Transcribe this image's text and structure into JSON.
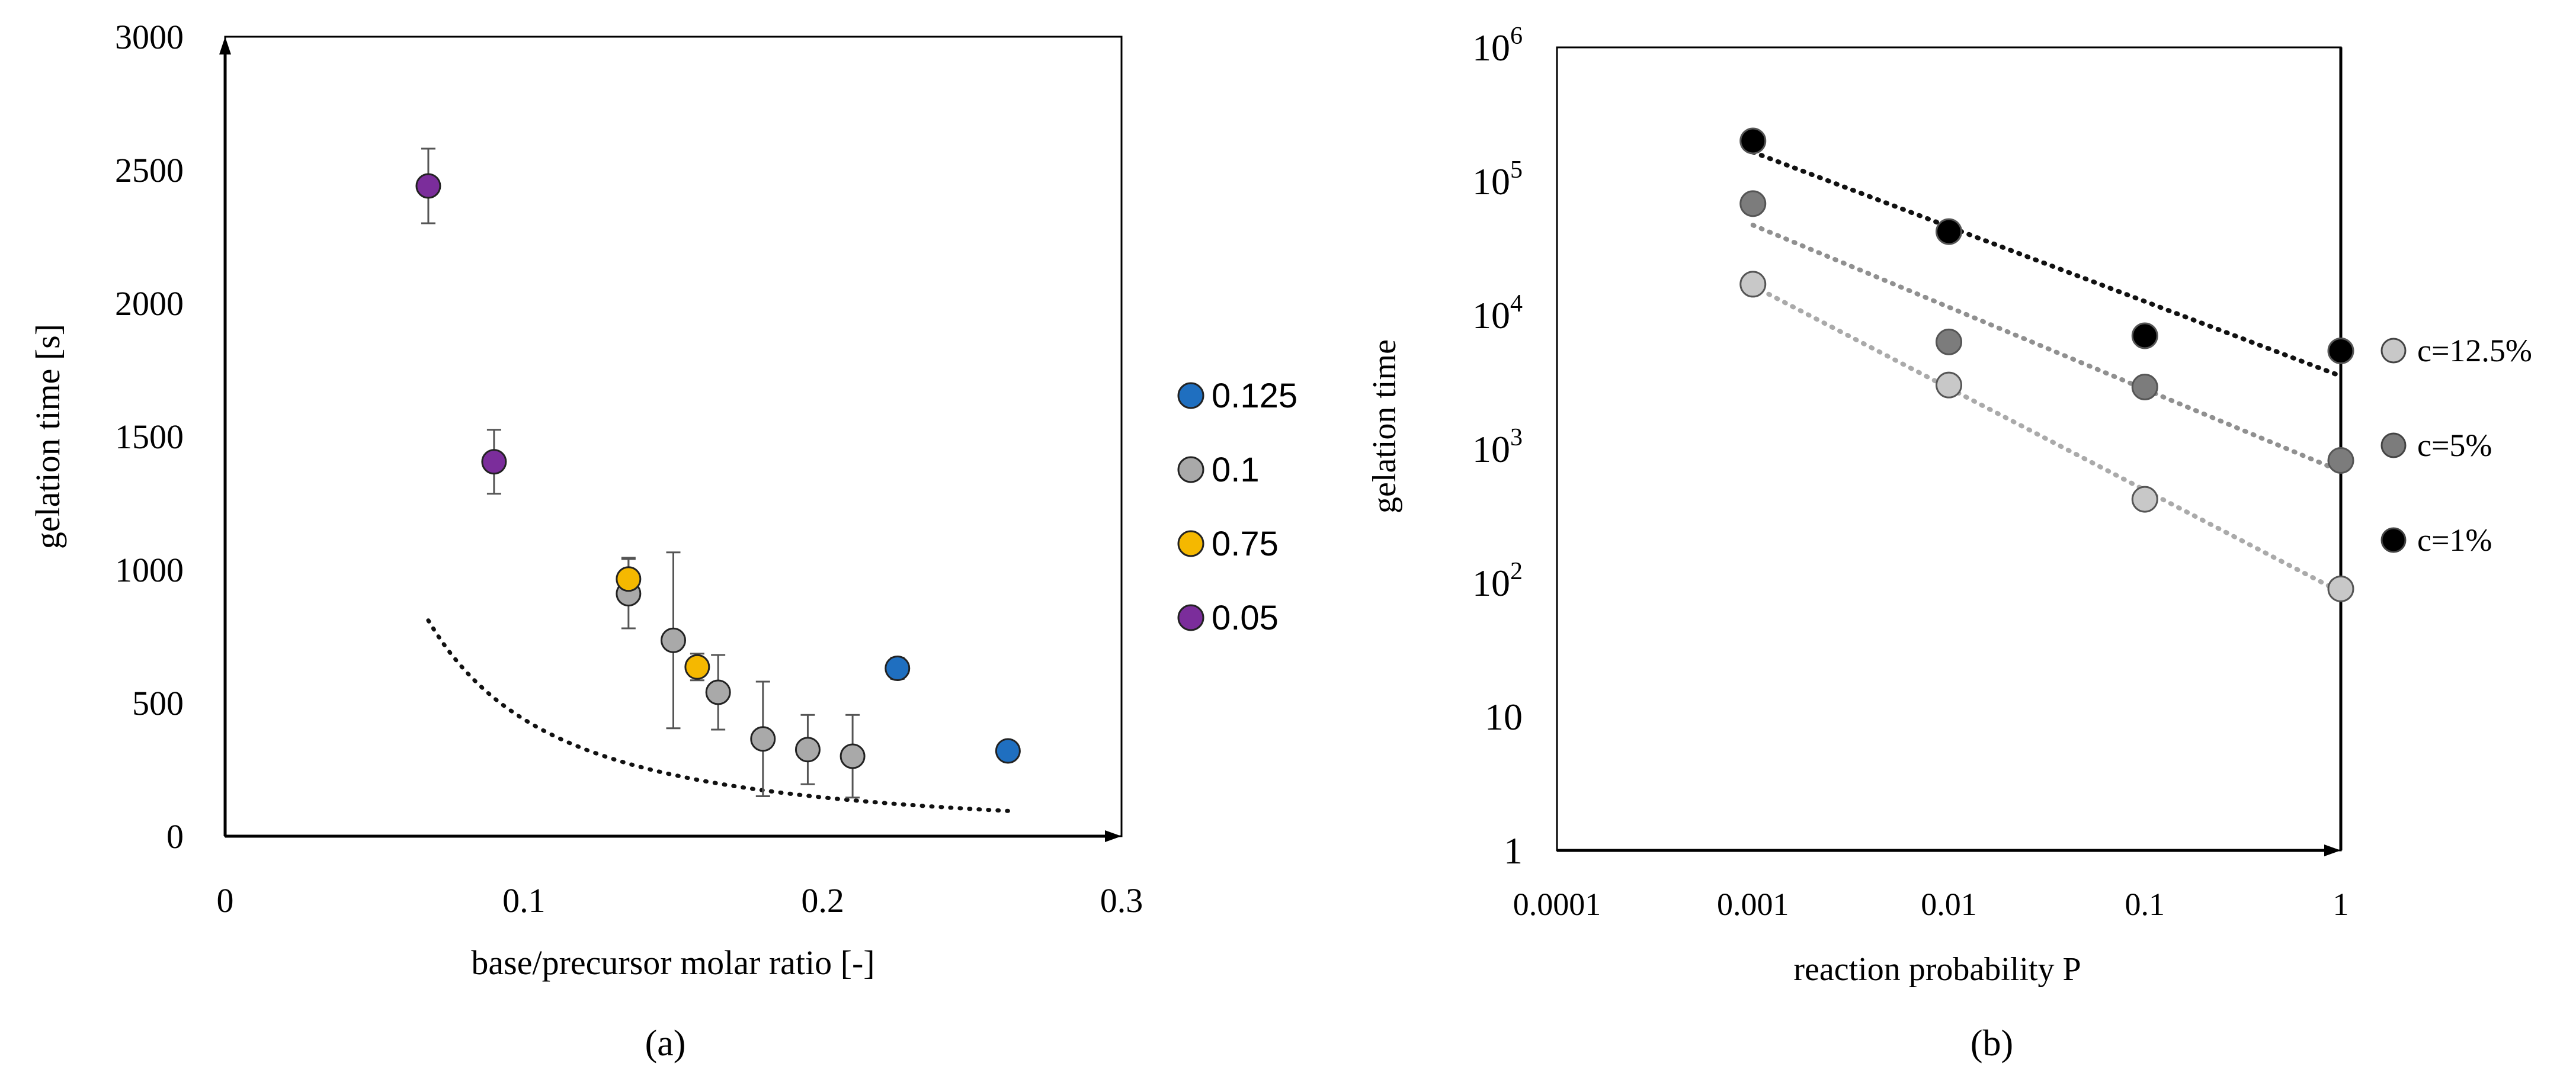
{
  "chart_data": [
    {
      "type": "scatter",
      "panel_label": "(a)",
      "xlabel": "base/precursor molar ratio [-]",
      "ylabel": "gelation time [s]",
      "xlim": [
        0,
        0.3
      ],
      "ylim": [
        0,
        3000
      ],
      "x_ticks": [
        "0",
        "0.1",
        "0.2",
        "0.3"
      ],
      "y_ticks": [
        "0",
        "500",
        "1000",
        "1500",
        "2000",
        "2500",
        "3000"
      ],
      "legend_position": "right",
      "series": [
        {
          "name": "0.125",
          "color": "#1f6fc0",
          "points": [
            {
              "x": 0.225,
              "y": 630,
              "err": 40
            },
            {
              "x": 0.262,
              "y": 320,
              "err": 20
            }
          ]
        },
        {
          "name": "0.1",
          "color": "#a9a9a9",
          "points": [
            {
              "x": 0.135,
              "y": 910,
              "err": 130
            },
            {
              "x": 0.15,
              "y": 735,
              "err": 330
            },
            {
              "x": 0.165,
              "y": 540,
              "err": 140
            },
            {
              "x": 0.18,
              "y": 365,
              "err": 215
            },
            {
              "x": 0.195,
              "y": 325,
              "err": 130
            },
            {
              "x": 0.21,
              "y": 300,
              "err": 155
            }
          ]
        },
        {
          "name": "0.75",
          "color": "#f5b800",
          "points": [
            {
              "x": 0.135,
              "y": 965,
              "err": 80
            },
            {
              "x": 0.158,
              "y": 635,
              "err": 50
            }
          ]
        },
        {
          "name": "0.05",
          "color": "#7b2d9b",
          "points": [
            {
              "x": 0.068,
              "y": 2440,
              "err": 140
            },
            {
              "x": 0.09,
              "y": 1405,
              "err": 120
            }
          ]
        }
      ],
      "trendline": {
        "style": "dotted",
        "color": "#111111",
        "x_start": 0.068,
        "x_end": 0.262,
        "formula": "y = 11.27 * x^-1.59"
      }
    },
    {
      "type": "scatter",
      "panel_label": "(b)",
      "xlabel": "reaction probability P",
      "ylabel": "gelation time",
      "x_scale": "log",
      "y_scale": "log",
      "xlim": [
        0.0001,
        1
      ],
      "ylim": [
        1,
        1000000
      ],
      "x_ticks": [
        "0.0001",
        "0.001",
        "0.01",
        "0.1",
        "1"
      ],
      "y_ticks": [
        {
          "base": "1",
          "exp": ""
        },
        {
          "base": "10",
          "exp": ""
        },
        {
          "base": "10",
          "exp": "2"
        },
        {
          "base": "10",
          "exp": "3"
        },
        {
          "base": "10",
          "exp": "4"
        },
        {
          "base": "10",
          "exp": "5"
        },
        {
          "base": "10",
          "exp": "6"
        }
      ],
      "legend_position": "right",
      "series": [
        {
          "name": "c=12.5%",
          "color": "#c8c8c8",
          "line_color": "#aaaaaa",
          "x": [
            0.001,
            0.01,
            0.1,
            1
          ],
          "y": [
            17000,
            3000,
            420,
            90
          ],
          "fit": {
            "y_at_0.001": 16500,
            "y_at_1": 85
          }
        },
        {
          "name": "c=5%",
          "color": "#7c7c7c",
          "line_color": "#909090",
          "x": [
            0.001,
            0.01,
            0.1,
            1
          ],
          "y": [
            68000,
            6300,
            2900,
            820
          ],
          "fit": {
            "y_at_0.001": 47000,
            "y_at_1": 680
          }
        },
        {
          "name": "c=1%",
          "color": "#000000",
          "line_color": "#111111",
          "x": [
            0.001,
            0.01,
            0.1,
            1
          ],
          "y": [
            200000,
            42000,
            7000,
            5400
          ],
          "fit": {
            "y_at_0.001": 165000,
            "y_at_1": 3500
          }
        }
      ]
    }
  ]
}
